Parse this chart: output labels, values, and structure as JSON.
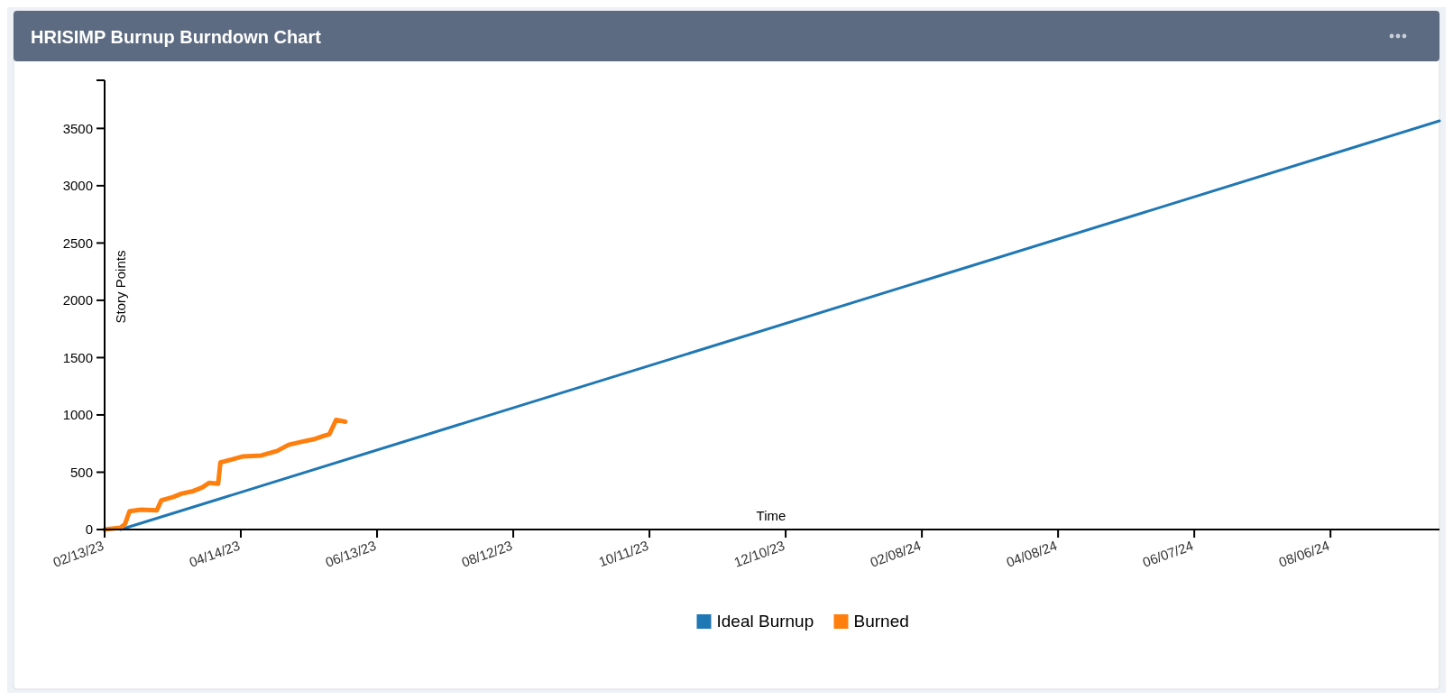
{
  "chart_data": {
    "type": "line",
    "title": "HRISIMP Burnup Burndown Chart",
    "xlabel": "Time",
    "ylabel": "Story Points",
    "xlim": [
      "2023-02-13",
      "2024-09-23"
    ],
    "xticks": [
      {
        "value": "2023-02-13",
        "label": "02/13/23"
      },
      {
        "value": "2023-04-14",
        "label": "04/14/23"
      },
      {
        "value": "2023-06-13",
        "label": "06/13/23"
      },
      {
        "value": "2023-08-12",
        "label": "08/12/23"
      },
      {
        "value": "2023-10-11",
        "label": "10/11/23"
      },
      {
        "value": "2023-12-10",
        "label": "12/10/23"
      },
      {
        "value": "2024-02-08",
        "label": "02/08/24"
      },
      {
        "value": "2024-04-08",
        "label": "04/08/24"
      },
      {
        "value": "2024-06-07",
        "label": "06/07/24"
      },
      {
        "value": "2024-08-06",
        "label": "08/06/24"
      }
    ],
    "ylim": [
      0,
      3920
    ],
    "yticks": [
      0,
      500,
      1000,
      1500,
      2000,
      2500,
      3000,
      3500
    ],
    "grid": false,
    "legend": "bottom",
    "marker": "none",
    "line_style": "solid",
    "series": [
      {
        "name": "Ideal Burnup",
        "color": "#1f77b4",
        "x": [
          "2023-02-20",
          "2024-09-23"
        ],
        "values": [
          0,
          3566
        ]
      },
      {
        "name": "Burned",
        "color": "#ff7f0e",
        "x": [
          "2023-02-13",
          "2023-02-20",
          "2023-02-22",
          "2023-02-24",
          "2023-03-01",
          "2023-03-08",
          "2023-03-10",
          "2023-03-15",
          "2023-03-19",
          "2023-03-24",
          "2023-03-28",
          "2023-03-31",
          "2023-04-04",
          "2023-04-05",
          "2023-04-10",
          "2023-04-15",
          "2023-04-23",
          "2023-04-30",
          "2023-05-05",
          "2023-05-11",
          "2023-05-16",
          "2023-05-20",
          "2023-05-23",
          "2023-05-26",
          "2023-05-30"
        ],
        "values": [
          0,
          16,
          48,
          160,
          173,
          168,
          255,
          282,
          314,
          335,
          367,
          407,
          399,
          585,
          611,
          638,
          646,
          686,
          739,
          766,
          787,
          813,
          832,
          957,
          941
        ]
      }
    ]
  }
}
